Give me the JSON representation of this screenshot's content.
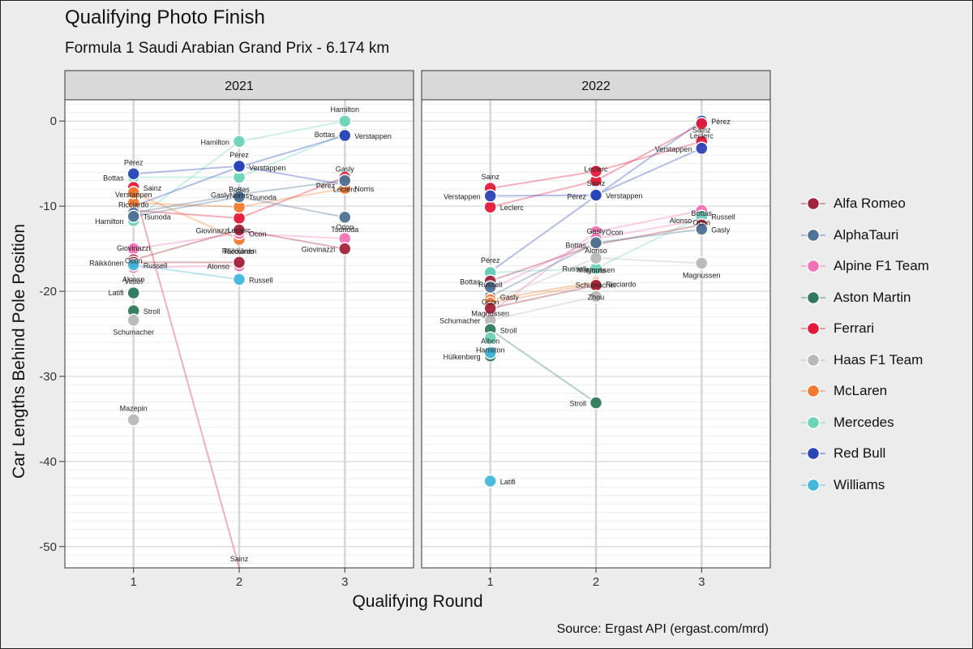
{
  "header": {
    "title": "Qualifying Photo Finish",
    "subtitle": "Formula 1 Saudi Arabian Grand Prix - 6.174 km"
  },
  "axes": {
    "xlabel": "Qualifying Round",
    "ylabel": "Car Lengths Behind Pole Position"
  },
  "caption": "Source: Ergast API (ergast.com/mrd)",
  "chart_data": {
    "type": "scatter",
    "facets": [
      "2021",
      "2022"
    ],
    "x_ticks": [
      1,
      2,
      3
    ],
    "y_ticks": [
      0,
      -10,
      -20,
      -30,
      -40,
      -50
    ],
    "ylim": [
      -52.5,
      2.5
    ],
    "xlim": [
      0.35,
      3.65
    ],
    "grid": true,
    "legend_position": "right",
    "teams": [
      {
        "name": "Alfa Romeo",
        "color": "#a3243a"
      },
      {
        "name": "AlphaTauri",
        "color": "#4e7396"
      },
      {
        "name": "Alpine F1 Team",
        "color": "#f272b7"
      },
      {
        "name": "Aston Martin",
        "color": "#2f7a5c"
      },
      {
        "name": "Ferrari",
        "color": "#e3193a"
      },
      {
        "name": "Haas F1 Team",
        "color": "#b8b8b8"
      },
      {
        "name": "McLaren",
        "color": "#f27a32"
      },
      {
        "name": "Mercedes",
        "color": "#6dd3b9"
      },
      {
        "name": "Red Bull",
        "color": "#2a44b8"
      },
      {
        "name": "Williams",
        "color": "#41b8dc"
      }
    ],
    "series": [
      {
        "facet": "2021",
        "driver": "Hamilton",
        "team": "Mercedes",
        "values": [
          -11.7,
          -2.4,
          0
        ]
      },
      {
        "facet": "2021",
        "driver": "Bottas",
        "team": "Mercedes",
        "values": [
          -6.6,
          -6.6,
          -1.5
        ]
      },
      {
        "facet": "2021",
        "driver": "Verstappen",
        "team": "Red Bull",
        "values": [
          -10.0,
          -5.4,
          -1.7
        ]
      },
      {
        "facet": "2021",
        "driver": "Pérez",
        "team": "Red Bull",
        "values": [
          -6.2,
          -5.3,
          -7.5
        ]
      },
      {
        "facet": "2021",
        "driver": "Leclerc",
        "team": "Ferrari",
        "values": [
          -10.5,
          -11.4,
          -6.6
        ]
      },
      {
        "facet": "2021",
        "driver": "Sainz",
        "team": "Ferrari",
        "values": [
          -7.8,
          -52.5
        ]
      },
      {
        "facet": "2021",
        "driver": "Norris",
        "team": "McLaren",
        "values": [
          -9.6,
          -10.1,
          -7.9
        ]
      },
      {
        "facet": "2021",
        "driver": "Ricciardo",
        "team": "McLaren",
        "values": [
          -8.4,
          -13.9
        ]
      },
      {
        "facet": "2021",
        "driver": "Gasly",
        "team": "AlphaTauri",
        "values": [
          -10.8,
          -8.6,
          -7.0
        ]
      },
      {
        "facet": "2021",
        "driver": "Tsunoda",
        "team": "AlphaTauri",
        "values": [
          -11.2,
          -8.9,
          -11.3
        ]
      },
      {
        "facet": "2021",
        "driver": "Ocon",
        "team": "Alpine F1 Team",
        "values": [
          -15.0,
          -13.2,
          -13.8
        ]
      },
      {
        "facet": "2021",
        "driver": "Alonso",
        "team": "Alpine F1 Team",
        "values": [
          -17.2,
          -17.0
        ]
      },
      {
        "facet": "2021",
        "driver": "Giovinazzi",
        "team": "Alfa Romeo",
        "values": [
          -16.3,
          -12.8,
          -15.0
        ]
      },
      {
        "facet": "2021",
        "driver": "Räikkönen",
        "team": "Alfa Romeo",
        "values": [
          -16.6,
          -16.6
        ]
      },
      {
        "facet": "2021",
        "driver": "Russell",
        "team": "Williams",
        "values": [
          -16.9,
          -18.6
        ]
      },
      {
        "facet": "2021",
        "driver": "Latifi",
        "team": "Williams",
        "values": [
          -20.1
        ]
      },
      {
        "facet": "2021",
        "driver": "Vettel",
        "team": "Aston Martin",
        "values": [
          -20.2
        ]
      },
      {
        "facet": "2021",
        "driver": "Stroll",
        "team": "Aston Martin",
        "values": [
          -22.3
        ]
      },
      {
        "facet": "2021",
        "driver": "Schumacher",
        "team": "Haas F1 Team",
        "values": [
          -23.4
        ]
      },
      {
        "facet": "2021",
        "driver": "Mazepin",
        "team": "Haas F1 Team",
        "values": [
          -35.1
        ]
      },
      {
        "facet": "2022",
        "driver": "Pérez",
        "team": "Red Bull",
        "values": [
          -17.7,
          -8.8,
          0
        ]
      },
      {
        "facet": "2022",
        "driver": "Leclerc",
        "team": "Ferrari",
        "values": [
          -10.1,
          -7.0,
          -0.3
        ]
      },
      {
        "facet": "2022",
        "driver": "Sainz",
        "team": "Ferrari",
        "values": [
          -7.9,
          -5.9,
          -2.4
        ]
      },
      {
        "facet": "2022",
        "driver": "Verstappen",
        "team": "Red Bull",
        "values": [
          -8.8,
          -8.7,
          -3.2
        ]
      },
      {
        "facet": "2022",
        "driver": "Ocon",
        "team": "Alpine F1 Team",
        "values": [
          -22.6,
          -13.0,
          -10.5
        ]
      },
      {
        "facet": "2022",
        "driver": "Alonso",
        "team": "Alpine F1 Team",
        "values": [
          -19.8,
          -13.8,
          -11.6
        ]
      },
      {
        "facet": "2022",
        "driver": "Russell",
        "team": "Mercedes",
        "values": [
          -17.8,
          -17.3,
          -11.2
        ]
      },
      {
        "facet": "2022",
        "driver": "Bottas",
        "team": "Alfa Romeo",
        "values": [
          -18.8,
          -14.5,
          -12.2
        ]
      },
      {
        "facet": "2022",
        "driver": "Gasly",
        "team": "AlphaTauri",
        "values": [
          -20.6,
          -14.3,
          -12.7
        ]
      },
      {
        "facet": "2022",
        "driver": "Magnussen",
        "team": "Haas F1 Team",
        "values": [
          -21.2,
          -16.1,
          -16.7
        ]
      },
      {
        "facet": "2022",
        "driver": "Norris",
        "team": "McLaren",
        "values": [
          -21.0,
          -18.9
        ]
      },
      {
        "facet": "2022",
        "driver": "Ricciardo",
        "team": "McLaren",
        "values": [
          -21.4,
          -19.1
        ]
      },
      {
        "facet": "2022",
        "driver": "Zhou",
        "team": "Alfa Romeo",
        "values": [
          -22.0,
          -19.3
        ]
      },
      {
        "facet": "2022",
        "driver": "Schumacher",
        "team": "Haas F1 Team",
        "values": [
          -23.4,
          -20.6
        ]
      },
      {
        "facet": "2022",
        "driver": "Stroll",
        "team": "Aston Martin",
        "values": [
          -24.5,
          -33.1
        ]
      },
      {
        "facet": "2022",
        "driver": "Hamilton",
        "team": "Mercedes",
        "values": [
          -25.5
        ]
      },
      {
        "facet": "2022",
        "driver": "Tsunoda",
        "team": "AlphaTauri",
        "values": [
          -19.5
        ]
      },
      {
        "facet": "2022",
        "driver": "Hülkenberg",
        "team": "Aston Martin",
        "values": [
          -27.6
        ]
      },
      {
        "facet": "2022",
        "driver": "Albon",
        "team": "Williams",
        "values": [
          -27.2
        ]
      },
      {
        "facet": "2022",
        "driver": "Latifi",
        "team": "Williams",
        "values": [
          -42.3
        ]
      }
    ],
    "point_labels": [
      {
        "facet": "2021",
        "x": 1,
        "text": "Pérez",
        "y": -6.2
      },
      {
        "facet": "2021",
        "x": 1,
        "text": "Bottas",
        "y": -6.6
      },
      {
        "facet": "2021",
        "x": 1,
        "text": "Sainz",
        "y": -7.8
      },
      {
        "facet": "2021",
        "x": 1,
        "text": "Ricciardo",
        "y": -8.4
      },
      {
        "facet": "2021",
        "x": 1,
        "text": "Verstappen",
        "y": -10.0
      },
      {
        "facet": "2021",
        "x": 1,
        "text": "Hamilton",
        "y": -11.7
      },
      {
        "facet": "2021",
        "x": 1,
        "text": "Tsunoda",
        "y": -11.2
      },
      {
        "facet": "2021",
        "x": 1,
        "text": "Ocon",
        "y": -15.0
      },
      {
        "facet": "2021",
        "x": 1,
        "text": "Giovinazzi",
        "y": -16.3
      },
      {
        "facet": "2021",
        "x": 1,
        "text": "Räikkönen",
        "y": -16.6
      },
      {
        "facet": "2021",
        "x": 1,
        "text": "Russell",
        "y": -16.9
      },
      {
        "facet": "2021",
        "x": 1,
        "text": "Alonso",
        "y": -17.2
      },
      {
        "facet": "2021",
        "x": 1,
        "text": "Vettel",
        "y": -20.2
      },
      {
        "facet": "2021",
        "x": 1,
        "text": "Latifi",
        "y": -20.1
      },
      {
        "facet": "2021",
        "x": 1,
        "text": "Stroll",
        "y": -22.3
      },
      {
        "facet": "2021",
        "x": 1,
        "text": "Schumacher",
        "y": -23.4
      },
      {
        "facet": "2021",
        "x": 1,
        "text": "Mazepin",
        "y": -35.1
      },
      {
        "facet": "2021",
        "x": 2,
        "text": "Hamilton",
        "y": -2.4
      },
      {
        "facet": "2021",
        "x": 2,
        "text": "Verstappen",
        "y": -5.4
      },
      {
        "facet": "2021",
        "x": 2,
        "text": "Bottas",
        "y": -6.6
      },
      {
        "facet": "2021",
        "x": 2,
        "text": "Pérez",
        "y": -5.3
      },
      {
        "facet": "2021",
        "x": 2,
        "text": "Gasly",
        "y": -8.6
      },
      {
        "facet": "2021",
        "x": 2,
        "text": "Tsunoda",
        "y": -8.9
      },
      {
        "facet": "2021",
        "x": 2,
        "text": "Leclerc",
        "y": -11.4
      },
      {
        "facet": "2021",
        "x": 2,
        "text": "Norris",
        "y": -10.1
      },
      {
        "facet": "2021",
        "x": 2,
        "text": "Giovinazzi",
        "y": -12.8
      },
      {
        "facet": "2021",
        "x": 2,
        "text": "Ocon",
        "y": -13.2
      },
      {
        "facet": "2021",
        "x": 2,
        "text": "Ricciardo",
        "y": -13.9
      },
      {
        "facet": "2021",
        "x": 2,
        "text": "Räikkönen",
        "y": -16.6
      },
      {
        "facet": "2021",
        "x": 2,
        "text": "Alonso",
        "y": -17.0
      },
      {
        "facet": "2021",
        "x": 2,
        "text": "Russell",
        "y": -18.6
      },
      {
        "facet": "2021",
        "x": 2,
        "text": "Sainz",
        "y": -52.5
      },
      {
        "facet": "2021",
        "x": 3,
        "text": "Hamilton",
        "y": 0
      },
      {
        "facet": "2021",
        "x": 3,
        "text": "Bottas",
        "y": -1.5
      },
      {
        "facet": "2021",
        "x": 3,
        "text": "Verstappen",
        "y": -1.7
      },
      {
        "facet": "2021",
        "x": 3,
        "text": "Leclerc",
        "y": -6.6
      },
      {
        "facet": "2021",
        "x": 3,
        "text": "Gasly",
        "y": -7.0
      },
      {
        "facet": "2021",
        "x": 3,
        "text": "Pérez",
        "y": -7.5
      },
      {
        "facet": "2021",
        "x": 3,
        "text": "Norris",
        "y": -7.9
      },
      {
        "facet": "2021",
        "x": 3,
        "text": "Tsunoda",
        "y": -11.3
      },
      {
        "facet": "2021",
        "x": 3,
        "text": "Ocon",
        "y": -13.8
      },
      {
        "facet": "2021",
        "x": 3,
        "text": "Giovinazzi",
        "y": -15.0
      },
      {
        "facet": "2022",
        "x": 1,
        "text": "Sainz",
        "y": -7.9
      },
      {
        "facet": "2022",
        "x": 1,
        "text": "Verstappen",
        "y": -8.8
      },
      {
        "facet": "2022",
        "x": 1,
        "text": "Leclerc",
        "y": -10.1
      },
      {
        "facet": "2022",
        "x": 1,
        "text": "Russell",
        "y": -17.8
      },
      {
        "facet": "2022",
        "x": 1,
        "text": "Pérez",
        "y": -17.7
      },
      {
        "facet": "2022",
        "x": 1,
        "text": "Bottas",
        "y": -18.8
      },
      {
        "facet": "2022",
        "x": 1,
        "text": "Gasly",
        "y": -20.6
      },
      {
        "facet": "2022",
        "x": 1,
        "text": "Magnussen",
        "y": -21.2
      },
      {
        "facet": "2022",
        "x": 1,
        "text": "Ocon",
        "y": -22.6
      },
      {
        "facet": "2022",
        "x": 1,
        "text": "Schumacher",
        "y": -23.4
      },
      {
        "facet": "2022",
        "x": 1,
        "text": "Stroll",
        "y": -24.5
      },
      {
        "facet": "2022",
        "x": 1,
        "text": "Hamilton",
        "y": -25.5
      },
      {
        "facet": "2022",
        "x": 1,
        "text": "Albon",
        "y": -27.2
      },
      {
        "facet": "2022",
        "x": 1,
        "text": "Hülkenberg",
        "y": -27.6
      },
      {
        "facet": "2022",
        "x": 1,
        "text": "Latifi",
        "y": -42.3
      },
      {
        "facet": "2022",
        "x": 2,
        "text": "Sainz",
        "y": -5.9
      },
      {
        "facet": "2022",
        "x": 2,
        "text": "Leclerc",
        "y": -7.0
      },
      {
        "facet": "2022",
        "x": 2,
        "text": "Pérez",
        "y": -8.8
      },
      {
        "facet": "2022",
        "x": 2,
        "text": "Verstappen",
        "y": -8.7
      },
      {
        "facet": "2022",
        "x": 2,
        "text": "Alonso",
        "y": -13.8
      },
      {
        "facet": "2022",
        "x": 2,
        "text": "Gasly",
        "y": -14.3
      },
      {
        "facet": "2022",
        "x": 2,
        "text": "Bottas",
        "y": -14.5
      },
      {
        "facet": "2022",
        "x": 2,
        "text": "Ocon",
        "y": -13.0
      },
      {
        "facet": "2022",
        "x": 2,
        "text": "Magnussen",
        "y": -16.1
      },
      {
        "facet": "2022",
        "x": 2,
        "text": "Norris",
        "y": -18.9
      },
      {
        "facet": "2022",
        "x": 2,
        "text": "Russell",
        "y": -17.3
      },
      {
        "facet": "2022",
        "x": 2,
        "text": "Ricciardo",
        "y": -19.1
      },
      {
        "facet": "2022",
        "x": 2,
        "text": "Zhou",
        "y": -19.3
      },
      {
        "facet": "2022",
        "x": 2,
        "text": "Schumacher",
        "y": -20.6
      },
      {
        "facet": "2022",
        "x": 2,
        "text": "Stroll",
        "y": -33.1
      },
      {
        "facet": "2022",
        "x": 3,
        "text": "Pérez",
        "y": 0
      },
      {
        "facet": "2022",
        "x": 3,
        "text": "Leclerc",
        "y": -0.3
      },
      {
        "facet": "2022",
        "x": 3,
        "text": "Sainz",
        "y": -2.4
      },
      {
        "facet": "2022",
        "x": 3,
        "text": "Verstappen",
        "y": -3.2
      },
      {
        "facet": "2022",
        "x": 3,
        "text": "Russell",
        "y": -11.2
      },
      {
        "facet": "2022",
        "x": 3,
        "text": "Ocon",
        "y": -10.5
      },
      {
        "facet": "2022",
        "x": 3,
        "text": "Bottas",
        "y": -12.2
      },
      {
        "facet": "2022",
        "x": 3,
        "text": "Alonso",
        "y": -11.6
      },
      {
        "facet": "2022",
        "x": 3,
        "text": "Gasly",
        "y": -12.7
      },
      {
        "facet": "2022",
        "x": 3,
        "text": "Magnussen",
        "y": -16.7
      }
    ]
  }
}
